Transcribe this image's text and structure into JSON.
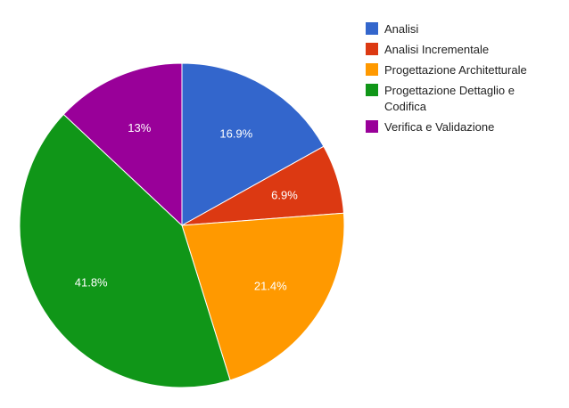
{
  "chart_data": {
    "type": "pie",
    "categories": [
      "Analisi",
      "Analisi Incrementale",
      "Progettazione Architetturale",
      "Progettazione Dettaglio e Codifica",
      "Verifica e Validazione"
    ],
    "values": [
      16.9,
      6.9,
      21.4,
      41.8,
      13
    ],
    "data_labels": [
      "16.9%",
      "6.9%",
      "21.4%",
      "41.8%",
      "13%"
    ],
    "colors": [
      "#3366cc",
      "#dc3912",
      "#ff9900",
      "#109618",
      "#990099"
    ],
    "legend_position": "right",
    "legend_lines": [
      [
        "Analisi"
      ],
      [
        "Analisi Incrementale"
      ],
      [
        "Progettazione Architetturale"
      ],
      [
        "Progettazione Dettaglio e",
        "Codifica"
      ],
      [
        "Verifica e Validazione"
      ]
    ]
  }
}
